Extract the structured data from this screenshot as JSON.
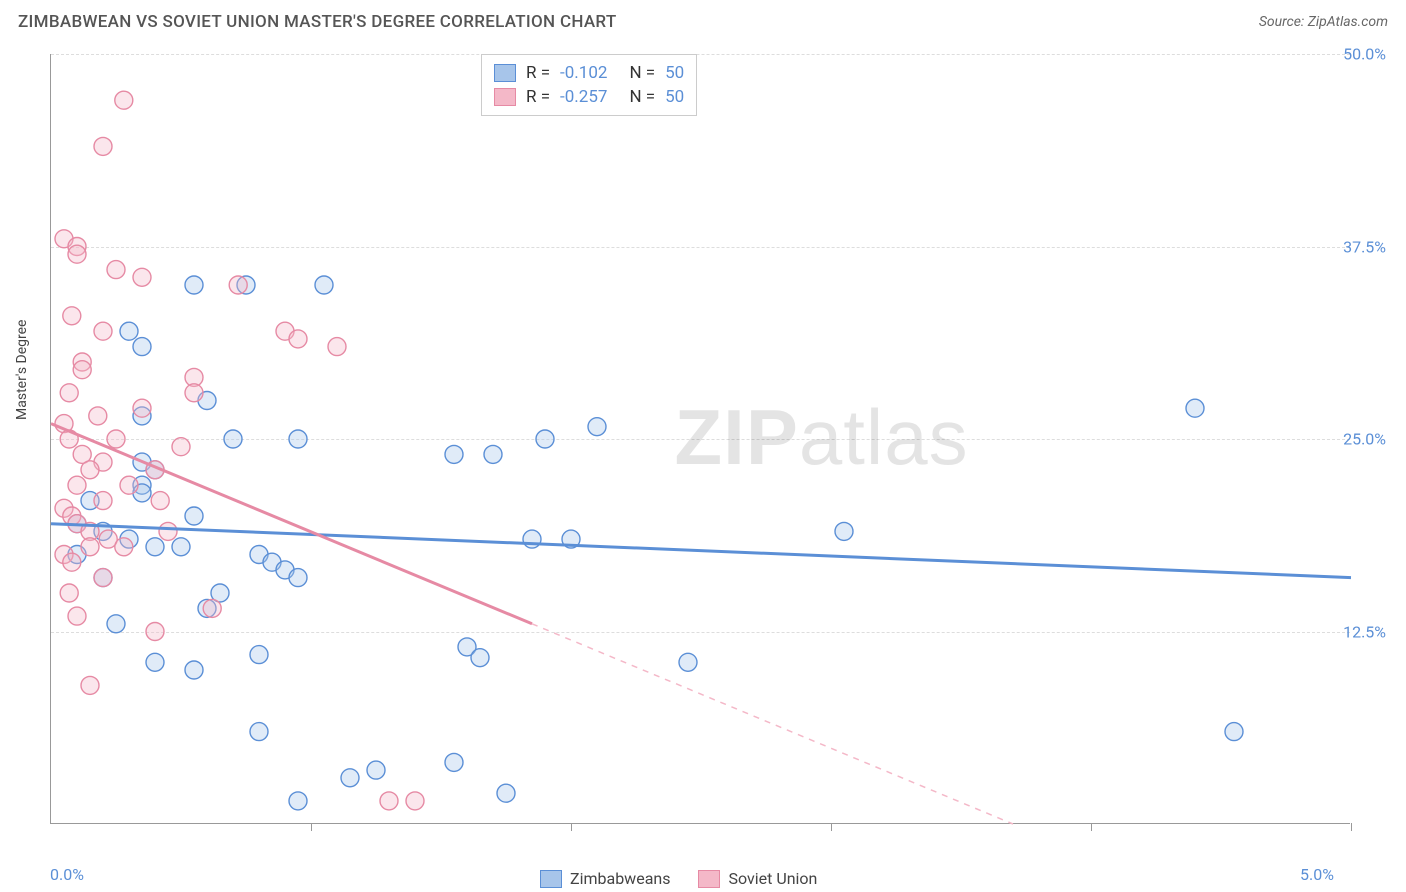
{
  "header": {
    "title": "ZIMBABWEAN VS SOVIET UNION MASTER'S DEGREE CORRELATION CHART",
    "source": "Source: ZipAtlas.com"
  },
  "watermark": {
    "zip": "ZIP",
    "atlas": "atlas"
  },
  "chart": {
    "type": "scatter",
    "ylabel": "Master's Degree",
    "xlim": [
      0,
      5
    ],
    "ylim": [
      0,
      50
    ],
    "xticks": [
      0,
      1,
      2,
      3,
      4,
      5
    ],
    "yticks": [
      12.5,
      25,
      37.5,
      50
    ],
    "xtick_labels": {
      "0": "0.0%",
      "5": "5.0%"
    },
    "ytick_labels": {
      "12.5": "12.5%",
      "25": "25.0%",
      "37.5": "37.5%",
      "50": "50.0%"
    },
    "background_color": "#ffffff",
    "grid_color": "#dddddd",
    "axis_color": "#999999",
    "marker_radius": 9,
    "marker_stroke_width": 1.4,
    "marker_fill_opacity": 0.35,
    "series": [
      {
        "name": "Zimbabweans",
        "color_stroke": "#5b8fd6",
        "color_fill": "#a7c5ea",
        "R": "-0.102",
        "N": "50",
        "trend": {
          "x1": 0,
          "y1": 19.5,
          "x2": 5,
          "y2": 16.0,
          "width": 3,
          "dash_after_x": null
        },
        "points": [
          [
            0.55,
            35.0
          ],
          [
            0.75,
            35.0
          ],
          [
            1.05,
            35.0
          ],
          [
            0.3,
            32.0
          ],
          [
            0.35,
            31.0
          ],
          [
            0.6,
            27.5
          ],
          [
            0.35,
            26.5
          ],
          [
            0.7,
            25.0
          ],
          [
            0.95,
            25.0
          ],
          [
            1.9,
            25.0
          ],
          [
            2.1,
            25.8
          ],
          [
            1.55,
            24.0
          ],
          [
            1.7,
            24.0
          ],
          [
            0.35,
            23.5
          ],
          [
            0.4,
            23.0
          ],
          [
            0.35,
            22.0
          ],
          [
            0.35,
            21.5
          ],
          [
            0.15,
            21.0
          ],
          [
            0.1,
            19.5
          ],
          [
            0.2,
            19.0
          ],
          [
            0.3,
            18.5
          ],
          [
            0.4,
            18.0
          ],
          [
            0.5,
            18.0
          ],
          [
            0.8,
            17.5
          ],
          [
            0.85,
            17.0
          ],
          [
            0.9,
            16.5
          ],
          [
            0.95,
            16.0
          ],
          [
            0.65,
            15.0
          ],
          [
            0.6,
            14.0
          ],
          [
            0.25,
            13.0
          ],
          [
            0.8,
            11.0
          ],
          [
            0.4,
            10.5
          ],
          [
            0.55,
            10.0
          ],
          [
            1.6,
            11.5
          ],
          [
            1.65,
            10.8
          ],
          [
            0.8,
            6.0
          ],
          [
            0.95,
            1.5
          ],
          [
            1.15,
            3.0
          ],
          [
            1.25,
            3.5
          ],
          [
            1.55,
            4.0
          ],
          [
            1.75,
            2.0
          ],
          [
            1.85,
            18.5
          ],
          [
            2.0,
            18.5
          ],
          [
            2.45,
            10.5
          ],
          [
            4.4,
            27.0
          ],
          [
            4.55,
            6.0
          ],
          [
            3.05,
            19.0
          ],
          [
            0.1,
            17.5
          ],
          [
            0.2,
            16.0
          ],
          [
            0.55,
            20.0
          ]
        ]
      },
      {
        "name": "Soviet Union",
        "color_stroke": "#e68aa4",
        "color_fill": "#f4b8c8",
        "R": "-0.257",
        "N": "50",
        "trend": {
          "x1": 0,
          "y1": 26.0,
          "x2": 3.7,
          "y2": 0,
          "width": 3,
          "dash_after_x": 1.85
        },
        "points": [
          [
            0.28,
            47.0
          ],
          [
            0.2,
            44.0
          ],
          [
            0.05,
            38.0
          ],
          [
            0.1,
            37.5
          ],
          [
            0.1,
            37.0
          ],
          [
            0.25,
            36.0
          ],
          [
            0.35,
            35.5
          ],
          [
            0.72,
            35.0
          ],
          [
            0.08,
            33.0
          ],
          [
            0.2,
            32.0
          ],
          [
            0.9,
            32.0
          ],
          [
            0.95,
            31.5
          ],
          [
            1.1,
            31.0
          ],
          [
            0.12,
            30.0
          ],
          [
            0.12,
            29.5
          ],
          [
            0.55,
            29.0
          ],
          [
            0.55,
            28.0
          ],
          [
            0.07,
            28.0
          ],
          [
            0.35,
            27.0
          ],
          [
            0.05,
            26.0
          ],
          [
            0.07,
            25.0
          ],
          [
            0.12,
            24.0
          ],
          [
            0.2,
            23.5
          ],
          [
            0.15,
            23.0
          ],
          [
            0.4,
            23.0
          ],
          [
            0.3,
            22.0
          ],
          [
            0.42,
            21.0
          ],
          [
            0.2,
            21.0
          ],
          [
            0.05,
            20.5
          ],
          [
            0.08,
            20.0
          ],
          [
            0.1,
            19.5
          ],
          [
            0.15,
            19.0
          ],
          [
            0.22,
            18.5
          ],
          [
            0.28,
            18.0
          ],
          [
            0.15,
            18.0
          ],
          [
            0.05,
            17.5
          ],
          [
            0.08,
            17.0
          ],
          [
            0.2,
            16.0
          ],
          [
            0.07,
            15.0
          ],
          [
            0.62,
            14.0
          ],
          [
            0.4,
            12.5
          ],
          [
            0.1,
            13.5
          ],
          [
            0.15,
            9.0
          ],
          [
            1.3,
            1.5
          ],
          [
            1.4,
            1.5
          ],
          [
            0.25,
            25.0
          ],
          [
            0.5,
            24.5
          ],
          [
            0.18,
            26.5
          ],
          [
            0.1,
            22.0
          ],
          [
            0.45,
            19.0
          ]
        ]
      }
    ],
    "legend_bottom": [
      "Zimbabweans",
      "Soviet Union"
    ],
    "legend_top_labels": {
      "R": "R =",
      "N": "N ="
    }
  }
}
